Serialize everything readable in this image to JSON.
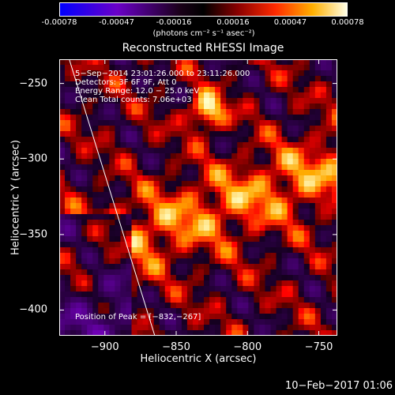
{
  "chart_data": {
    "type": "heatmap",
    "title": "Reconstructed RHESSI Image",
    "colorbar": {
      "ticks": [
        "-0.00078",
        "-0.00047",
        "-0.00016",
        "0.00016",
        "0.00047",
        "0.00078"
      ],
      "tick_values": [
        -0.00078,
        -0.00047,
        -0.00016,
        0.00016,
        0.00047,
        0.00078
      ],
      "range": [
        -0.00078,
        0.00078
      ],
      "unit_label": "(photons cm⁻² s⁻¹ asec⁻²)"
    },
    "xlabel": "Heliocentric X (arcsec)",
    "ylabel": "Heliocentric Y (arcsec)",
    "xlim": [
      -932,
      -737
    ],
    "ylim": [
      -417,
      -234
    ],
    "xticks": [
      "−900",
      "−850",
      "−800",
      "−750"
    ],
    "xtick_values": [
      -900,
      -850,
      -800,
      -750
    ],
    "yticks": [
      "−250",
      "−300",
      "−350",
      "−400"
    ],
    "ytick_values": [
      -250,
      -300,
      -350,
      -400
    ],
    "annotations": [
      "5−Sep−2014 23:01:26.000 to 23:11:26.000",
      "Detectors: 3F 6F 9F, Att 0",
      "Energy Range: 12.0 − 25.0 keV",
      "Clean      Total counts: 7.06e+03"
    ],
    "peak_label": "Position of Peak = [−832,−267]",
    "peak": [
      -832,
      -267
    ],
    "limb_line": [
      [
        -925,
        -234
      ],
      [
        -865,
        -417
      ]
    ],
    "colors": {
      "limb": "#ffffff",
      "background": "#000000"
    }
  },
  "footer": {
    "date": "10−Feb−2017 01:06"
  }
}
